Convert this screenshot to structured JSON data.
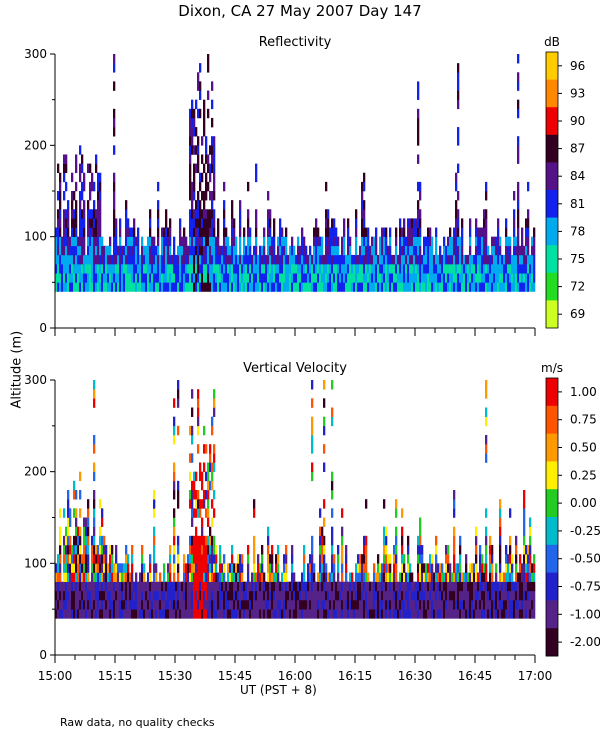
{
  "title": "Dixon, CA 27 May 2007  Day 147",
  "ylabel": "Altitude (m)",
  "xlabel": "UT  (PST + 8)",
  "footnote": "Raw data, no quality checks",
  "chart_data": [
    {
      "type": "heatmap",
      "title": "Reflectivity",
      "colorbar_unit": "dB",
      "colorbar_labels": [
        "96",
        "93",
        "90",
        "87",
        "84",
        "81",
        "78",
        "75",
        "72",
        "69"
      ],
      "colorbar_colors": [
        "#ffcc00",
        "#ff8800",
        "#ee0000",
        "#330022",
        "#551188",
        "#1122ee",
        "#00aaee",
        "#00e0a0",
        "#22dd22",
        "#ccff22"
      ],
      "x_ticks": [
        "15:00",
        "15:15",
        "15:30",
        "15:45",
        "16:00",
        "16:15",
        "16:30",
        "16:45",
        "17:00"
      ],
      "y_ticks": [
        "0",
        "100",
        "200",
        "300"
      ],
      "xlim": [
        0,
        120
      ],
      "ylim": [
        0,
        300
      ],
      "data_floor_m": 40,
      "gate_m": 10,
      "note": "Minutes after 15:00 UT vs altitude (m); dense echoes below ~100 m, plume near 15:35-15:38 reaching 300 m"
    },
    {
      "type": "heatmap",
      "title": "Vertical Velocity",
      "colorbar_unit": "m/s",
      "colorbar_labels": [
        "1.00",
        "0.75",
        "0.50",
        "0.25",
        "0.00",
        "-0.25",
        "-0.50",
        "-0.75",
        "-1.00",
        "-2.00"
      ],
      "colorbar_colors": [
        "#ee0000",
        "#ff5500",
        "#ff9900",
        "#ffee00",
        "#22cc22",
        "#00bbcc",
        "#2266ee",
        "#2222cc",
        "#552288",
        "#330022"
      ],
      "x_ticks": [
        "15:00",
        "15:15",
        "15:30",
        "15:45",
        "16:00",
        "16:15",
        "16:30",
        "16:45",
        "17:00"
      ],
      "y_ticks": [
        "0",
        "100",
        "200",
        "300"
      ],
      "xlim": [
        0,
        120
      ],
      "ylim": [
        0,
        300
      ],
      "data_floor_m": 40,
      "gate_m": 10
    }
  ]
}
